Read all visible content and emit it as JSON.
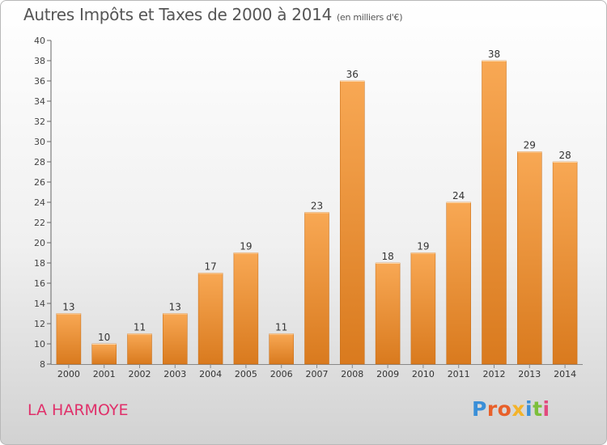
{
  "title": "Autres Impôts et Taxes de 2000 à 2014",
  "unit": "(en milliers d'€)",
  "place": "LA HARMOYE",
  "logo": "Proxiti",
  "colors": {
    "bar_top": "#f8a854",
    "bar_bottom": "#d97a1e",
    "title": "#555555",
    "place": "#e0306a",
    "logo_letters": [
      "#3a8fd8",
      "#e8602a",
      "#e8602a",
      "#f3b32a",
      "#3a8fd8",
      "#7cbf3b",
      "#e24a7e"
    ]
  },
  "chart_data": {
    "type": "bar",
    "title": "Autres Impôts et Taxes de 2000 à 2014",
    "subtitle": "(en milliers d'€)",
    "categories": [
      "2000",
      "2001",
      "2002",
      "2003",
      "2004",
      "2005",
      "2006",
      "2007",
      "2008",
      "2009",
      "2010",
      "2011",
      "2012",
      "2013",
      "2014"
    ],
    "values": [
      13,
      10,
      11,
      13,
      17,
      19,
      11,
      23,
      36,
      18,
      19,
      24,
      38,
      29,
      28
    ],
    "data_labels": [
      "13",
      "10",
      "11",
      "13",
      "17",
      "19",
      "11",
      "23",
      "36",
      "18",
      "19",
      "24",
      "38",
      "29",
      "28"
    ],
    "ylim": [
      8,
      40
    ],
    "yticks": [
      8,
      10,
      12,
      14,
      16,
      18,
      20,
      22,
      24,
      26,
      28,
      30,
      32,
      34,
      36,
      38,
      40
    ],
    "grid": false,
    "legend": "none"
  }
}
